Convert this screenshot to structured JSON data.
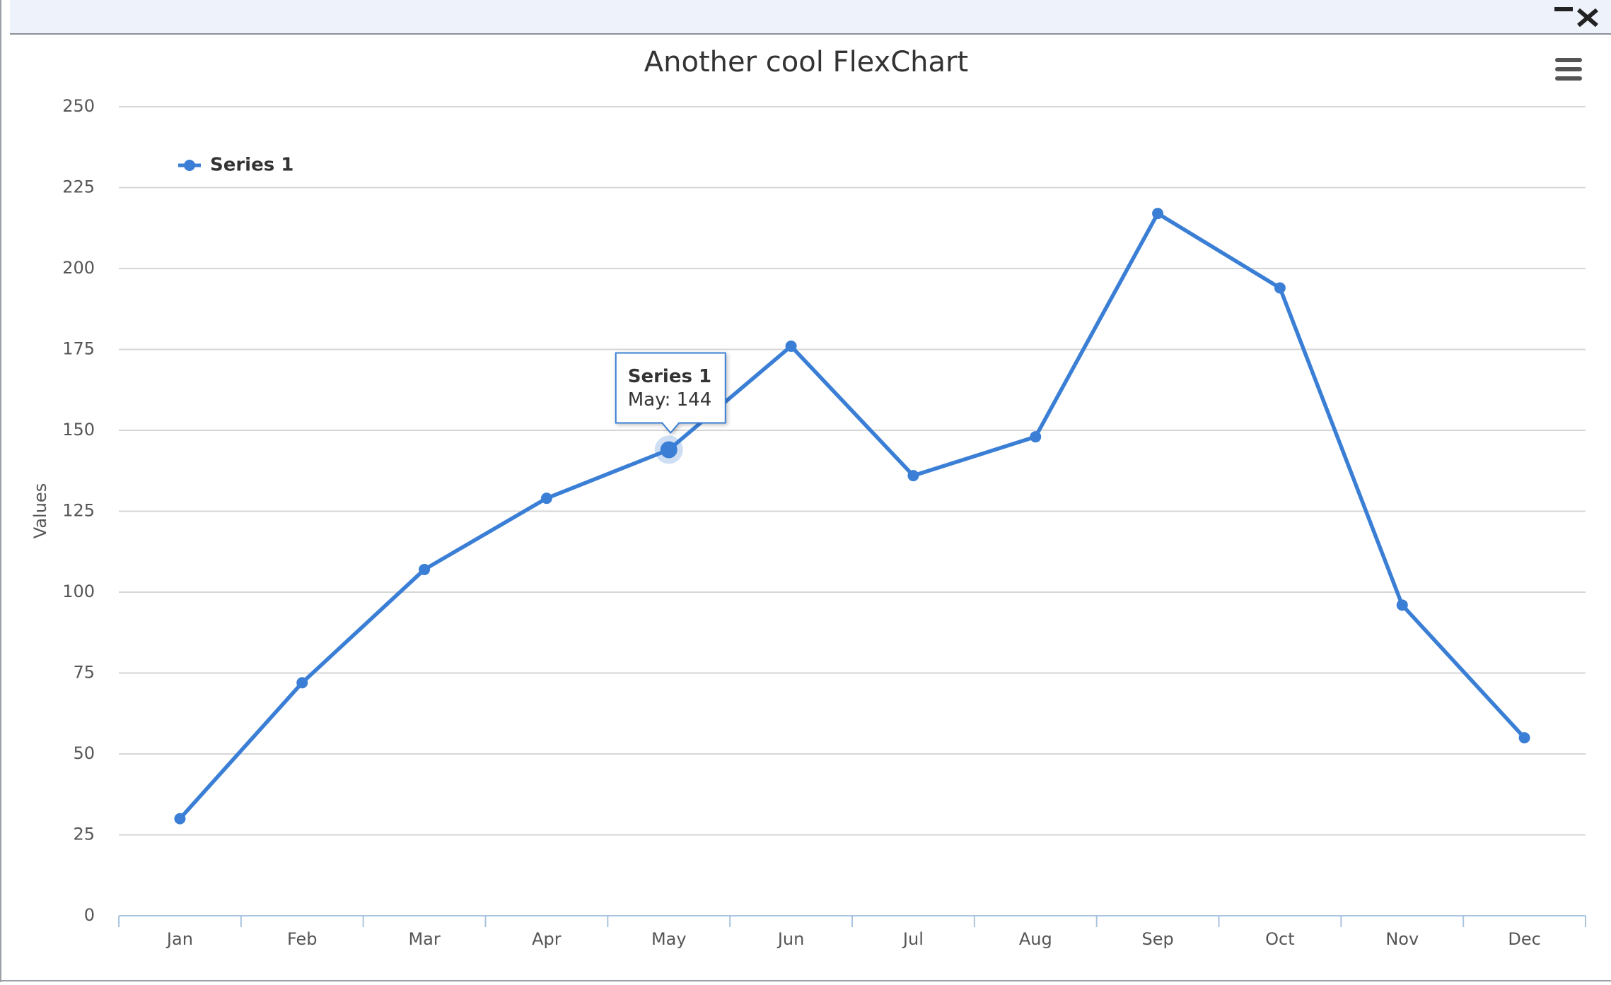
{
  "chart_data": {
    "type": "line",
    "title": "Another cool FlexChart",
    "y_label": "Values",
    "categories": [
      "Jan",
      "Feb",
      "Mar",
      "Apr",
      "May",
      "Jun",
      "Jul",
      "Aug",
      "Sep",
      "Oct",
      "Nov",
      "Dec"
    ],
    "series": [
      {
        "name": "Series 1",
        "color": "#3a7fd5",
        "values": [
          30,
          72,
          107,
          129,
          144,
          176,
          136,
          148,
          217,
          194,
          96,
          55
        ]
      }
    ],
    "ylim": [
      0,
      250
    ],
    "yticks": [
      0,
      25,
      50,
      75,
      100,
      125,
      150,
      175,
      200,
      225,
      250
    ],
    "grid": true,
    "legend": "top-left",
    "tooltip": {
      "title": "Series 1",
      "text": "May: 144"
    }
  }
}
